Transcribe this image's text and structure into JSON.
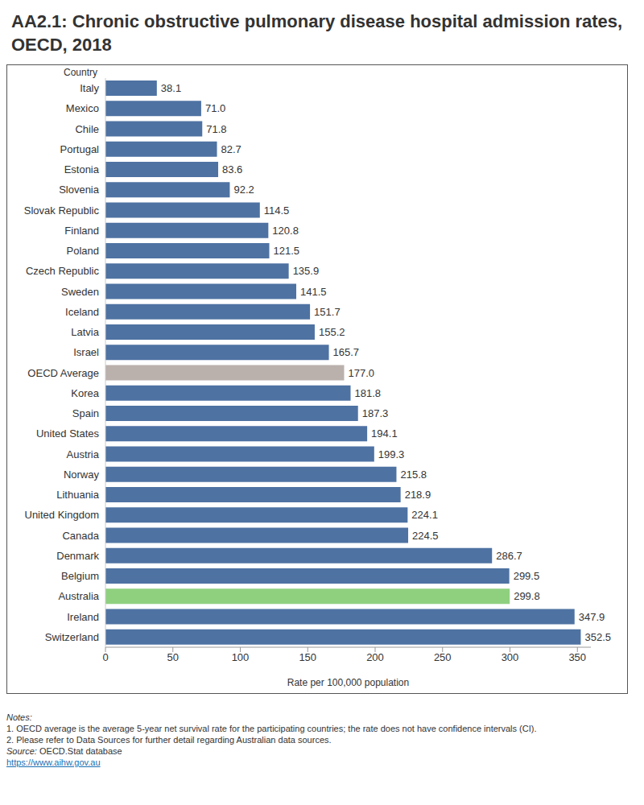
{
  "chart_data": {
    "type": "bar",
    "title": "AA2.1: Chronic obstructive pulmonary disease hospital admission rates, OECD, 2018",
    "orientation": "horizontal",
    "y_label": "Country",
    "x_label": "Rate per 100,000 population",
    "categories": [
      "Italy",
      "Mexico",
      "Chile",
      "Portugal",
      "Estonia",
      "Slovenia",
      "Slovak Republic",
      "Finland",
      "Poland",
      "Czech Republic",
      "Sweden",
      "Iceland",
      "Latvia",
      "Israel",
      "OECD Average",
      "Korea",
      "Spain",
      "United States",
      "Austria",
      "Norway",
      "Lithuania",
      "United Kingdom",
      "Canada",
      "Denmark",
      "Belgium",
      "Australia",
      "Ireland",
      "Switzerland"
    ],
    "values": [
      38.1,
      71.0,
      71.8,
      82.7,
      83.6,
      92.2,
      114.5,
      120.8,
      121.5,
      135.9,
      141.5,
      151.7,
      155.2,
      165.7,
      177.0,
      181.8,
      187.3,
      194.1,
      199.3,
      215.8,
      218.9,
      224.1,
      224.5,
      286.7,
      299.5,
      299.8,
      347.9,
      352.5
    ],
    "value_labels": [
      "38.1",
      "71.0",
      "71.8",
      "82.7",
      "83.6",
      "92.2",
      "114.5",
      "120.8",
      "121.5",
      "135.9",
      "141.5",
      "151.7",
      "155.2",
      "165.7",
      "177.0",
      "181.8",
      "187.3",
      "194.1",
      "199.3",
      "215.8",
      "218.9",
      "224.1",
      "224.5",
      "286.7",
      "299.5",
      "299.8",
      "347.9",
      "352.5"
    ],
    "colors": [
      "#4e72a2",
      "#4e72a2",
      "#4e72a2",
      "#4e72a2",
      "#4e72a2",
      "#4e72a2",
      "#4e72a2",
      "#4e72a2",
      "#4e72a2",
      "#4e72a2",
      "#4e72a2",
      "#4e72a2",
      "#4e72a2",
      "#4e72a2",
      "#bab0ac",
      "#4e72a2",
      "#4e72a2",
      "#4e72a2",
      "#4e72a2",
      "#4e72a2",
      "#4e72a2",
      "#4e72a2",
      "#4e72a2",
      "#4e72a2",
      "#4e72a2",
      "#8fd07f",
      "#4e72a2",
      "#4e72a2"
    ],
    "xlim": [
      0,
      360
    ],
    "xticks": [
      0,
      50,
      100,
      150,
      200,
      250,
      300,
      350
    ],
    "grid": false,
    "data_labels": true,
    "notes": {
      "heading": "Notes:",
      "items": [
        "1. OECD average is the average 5-year net survival rate for the participating countries; the rate does not have confidence intervals (CI).",
        "2. Please refer to Data Sources for further detail regarding Australian data sources."
      ]
    },
    "source_label": "Source:",
    "source": "OECD.Stat database",
    "url": "https://www.aihw.gov.au"
  }
}
